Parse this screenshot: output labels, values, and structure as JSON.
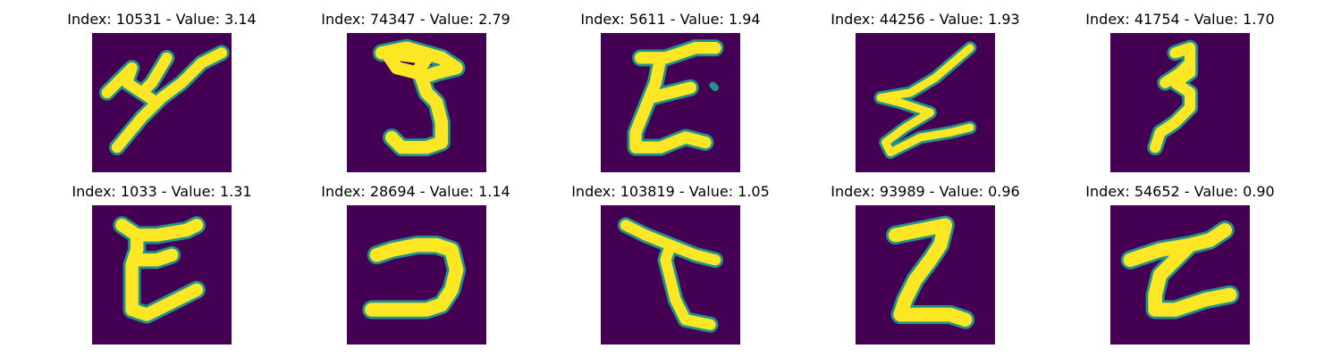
{
  "colors": {
    "background": "#440154",
    "stroke_edge": "#21918c",
    "stroke_core": "#fde725"
  },
  "panels": [
    {
      "title": "Index: 10531 - Value: 3.14"
    },
    {
      "title": "Index: 74347 - Value: 2.79"
    },
    {
      "title": "Index: 5611 - Value: 1.94"
    },
    {
      "title": "Index: 44256 - Value: 1.93"
    },
    {
      "title": "Index: 41754 - Value: 1.70"
    },
    {
      "title": "Index: 1033 - Value: 1.31"
    },
    {
      "title": "Index: 28694 - Value: 1.14"
    },
    {
      "title": "Index: 103819 - Value: 1.05"
    },
    {
      "title": "Index: 93989 - Value: 0.96"
    },
    {
      "title": "Index: 54652 - Value: 0.90"
    }
  ]
}
